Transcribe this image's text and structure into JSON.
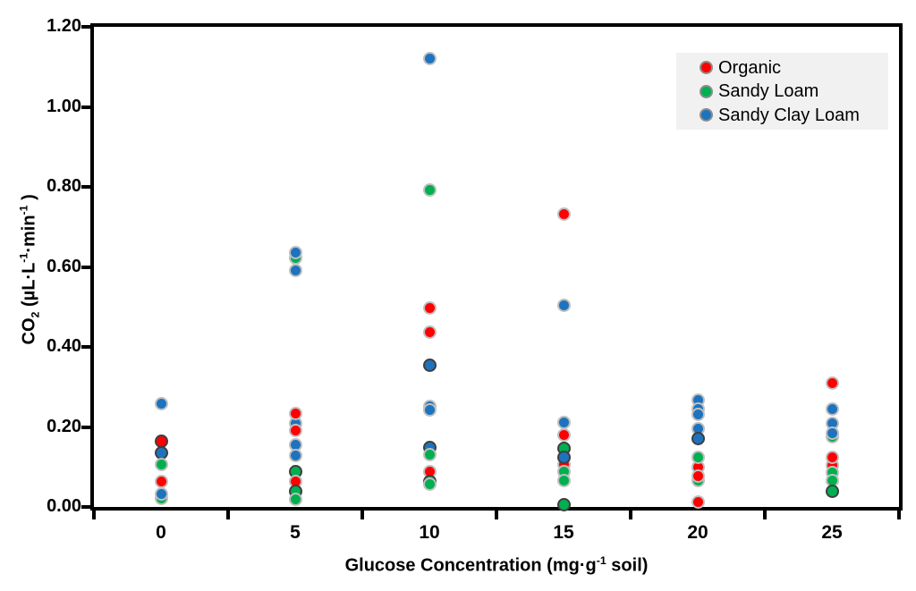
{
  "page": {
    "background": "#FFFFFF"
  },
  "chart_data": {
    "type": "scatter",
    "title": "",
    "xlabel": "Glucose Concentration (mg·g-1 soil)",
    "xlabel_segments": [
      {
        "t": "text",
        "v": "Glucose Concentration (mg·g"
      },
      {
        "t": "sup",
        "v": "-1"
      },
      {
        "t": "text",
        "v": " soil)"
      }
    ],
    "ylabel": "CO2 (µL·L-1·min-1 )",
    "ylabel_segments": [
      {
        "t": "text",
        "v": "CO"
      },
      {
        "t": "sub",
        "v": "2"
      },
      {
        "t": "text",
        "v": " (µL·L"
      },
      {
        "t": "sup",
        "v": "-1"
      },
      {
        "t": "text",
        "v": "·min"
      },
      {
        "t": "sup",
        "v": "-1"
      },
      {
        "t": "text",
        "v": " )"
      }
    ],
    "xlim": [
      -2.5,
      27.5
    ],
    "ylim": [
      0,
      1.2
    ],
    "grid": false,
    "x_tick_labels": [
      {
        "label": "0",
        "value": 0
      },
      {
        "label": "5",
        "value": 5
      },
      {
        "label": "10",
        "value": 10
      },
      {
        "label": "15",
        "value": 15
      },
      {
        "label": "20",
        "value": 20
      },
      {
        "label": "25",
        "value": 25
      }
    ],
    "x_tick_marks": [
      -2.5,
      2.5,
      7.5,
      12.5,
      17.5,
      22.5,
      27.5
    ],
    "y_tick_labels": [
      {
        "label": "0.00",
        "value": 0.0
      },
      {
        "label": "0.20",
        "value": 0.2
      },
      {
        "label": "0.40",
        "value": 0.4
      },
      {
        "label": "0.60",
        "value": 0.6
      },
      {
        "label": "0.80",
        "value": 0.8
      },
      {
        "label": "1.00",
        "value": 1.0
      },
      {
        "label": "1.20",
        "value": 1.2
      }
    ],
    "legend": {
      "position": "top-right",
      "background": "#F1F1F1"
    },
    "marker": {
      "diameter": 15,
      "border_light": "#BFBFBF",
      "border_dark": "#3F3F3F"
    },
    "series": [
      {
        "name": "Organic",
        "color": "#FF0000",
        "points": [
          {
            "x": 0,
            "y": 0.165,
            "ring": "dark"
          },
          {
            "x": 0,
            "y": 0.063
          },
          {
            "x": 5,
            "y": 0.234
          },
          {
            "x": 5,
            "y": 0.192
          },
          {
            "x": 5,
            "y": 0.063
          },
          {
            "x": 10,
            "y": 0.498
          },
          {
            "x": 10,
            "y": 0.437
          },
          {
            "x": 10,
            "y": 0.089
          },
          {
            "x": 15,
            "y": 0.731
          },
          {
            "x": 15,
            "y": 0.181
          },
          {
            "x": 15,
            "y": 0.107,
            "behind": true
          },
          {
            "x": 20,
            "y": 0.1,
            "behind": true
          },
          {
            "x": 20,
            "y": 0.078
          },
          {
            "x": 20,
            "y": 0.013
          },
          {
            "x": 25,
            "y": 0.31
          },
          {
            "x": 25,
            "y": 0.123
          },
          {
            "x": 25,
            "y": 0.103,
            "behind": true
          }
        ]
      },
      {
        "name": "Sandy Loam",
        "color": "#00B050",
        "points": [
          {
            "x": 0,
            "y": 0.107
          },
          {
            "x": 0,
            "y": 0.022,
            "behind": true
          },
          {
            "x": 5,
            "y": 0.622,
            "behind": true
          },
          {
            "x": 5,
            "y": 0.089,
            "ring": "dark"
          },
          {
            "x": 5,
            "y": 0.04,
            "ring": "dark"
          },
          {
            "x": 5,
            "y": 0.018
          },
          {
            "x": 10,
            "y": 0.792
          },
          {
            "x": 10,
            "y": 0.13
          },
          {
            "x": 10,
            "y": 0.064,
            "ring": "dark"
          },
          {
            "x": 10,
            "y": 0.058
          },
          {
            "x": 15,
            "y": 0.147,
            "ring": "dark"
          },
          {
            "x": 15,
            "y": 0.089
          },
          {
            "x": 15,
            "y": 0.065
          },
          {
            "x": 15,
            "y": 0.005,
            "ring": "dark"
          },
          {
            "x": 20,
            "y": 0.125
          },
          {
            "x": 20,
            "y": 0.065,
            "behind": true
          },
          {
            "x": 25,
            "y": 0.175,
            "behind": true
          },
          {
            "x": 25,
            "y": 0.085
          },
          {
            "x": 25,
            "y": 0.067
          },
          {
            "x": 25,
            "y": 0.04,
            "ring": "dark"
          }
        ]
      },
      {
        "name": "Sandy Clay Loam",
        "color": "#1E73BE",
        "points": [
          {
            "x": 0,
            "y": 0.257
          },
          {
            "x": 0,
            "y": 0.135,
            "ring": "dark"
          },
          {
            "x": 0,
            "y": 0.033
          },
          {
            "x": 5,
            "y": 0.636
          },
          {
            "x": 5,
            "y": 0.591
          },
          {
            "x": 5,
            "y": 0.21,
            "behind": true
          },
          {
            "x": 5,
            "y": 0.156
          },
          {
            "x": 5,
            "y": 0.129
          },
          {
            "x": 10,
            "y": 1.12
          },
          {
            "x": 10,
            "y": 0.355,
            "ring": "dark"
          },
          {
            "x": 10,
            "y": 0.252
          },
          {
            "x": 10,
            "y": 0.243
          },
          {
            "x": 10,
            "y": 0.148,
            "ring": "dark"
          },
          {
            "x": 15,
            "y": 0.503
          },
          {
            "x": 15,
            "y": 0.212
          },
          {
            "x": 15,
            "y": 0.123,
            "ring": "dark"
          },
          {
            "x": 20,
            "y": 0.268
          },
          {
            "x": 20,
            "y": 0.245
          },
          {
            "x": 20,
            "y": 0.232
          },
          {
            "x": 20,
            "y": 0.196
          },
          {
            "x": 20,
            "y": 0.17,
            "ring": "dark"
          },
          {
            "x": 25,
            "y": 0.245
          },
          {
            "x": 25,
            "y": 0.208
          },
          {
            "x": 25,
            "y": 0.185
          }
        ]
      }
    ]
  }
}
